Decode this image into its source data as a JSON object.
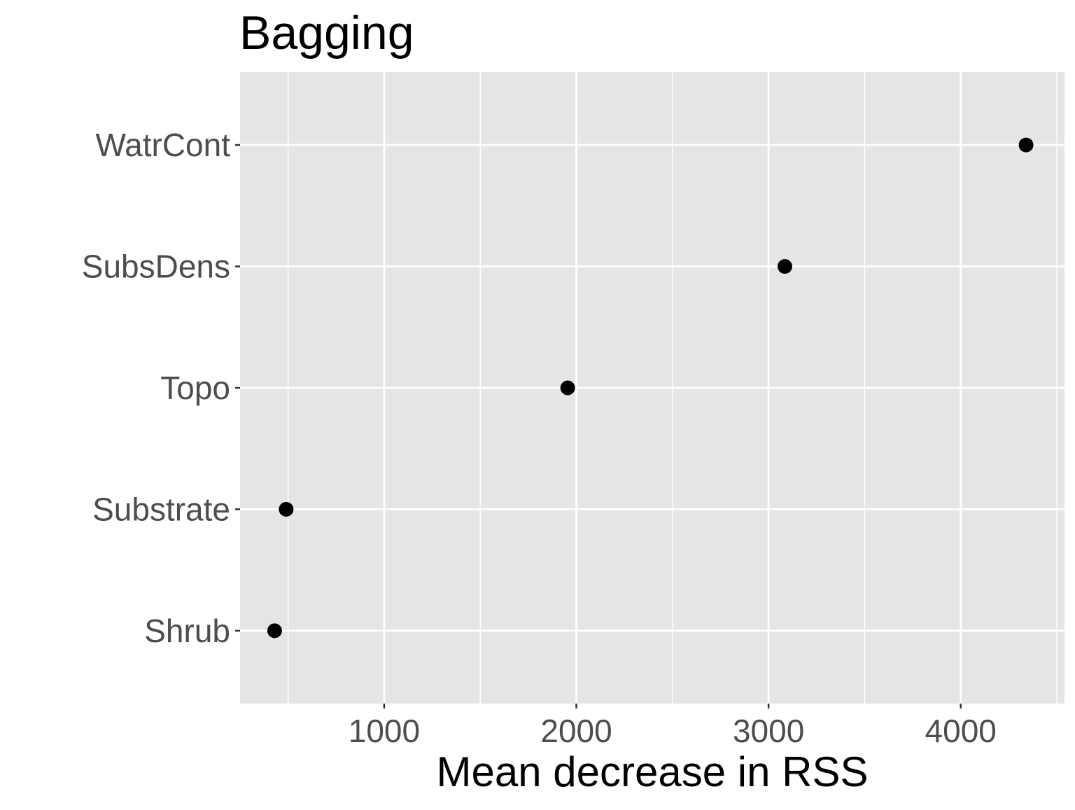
{
  "chart_data": {
    "type": "scatter",
    "title": "Bagging",
    "xlabel": "Mean decrease in RSS",
    "ylabel": "",
    "categories": [
      "Shrub",
      "Substrate",
      "Topo",
      "SubsDens",
      "WatrCont"
    ],
    "values": [
      430,
      490,
      1955,
      3085,
      4340
    ],
    "xlim": [
      250,
      4540
    ],
    "xticks": [
      1000,
      2000,
      3000,
      4000
    ],
    "xtick_labels": [
      "1000",
      "2000",
      "3000",
      "4000"
    ],
    "grid": true,
    "legend": "none",
    "colors": {
      "panel": "#e5e5e5",
      "grid": "#ffffff",
      "point": "#000000",
      "tick_label": "#4d4d4d",
      "tick_mark": "#333333"
    }
  }
}
